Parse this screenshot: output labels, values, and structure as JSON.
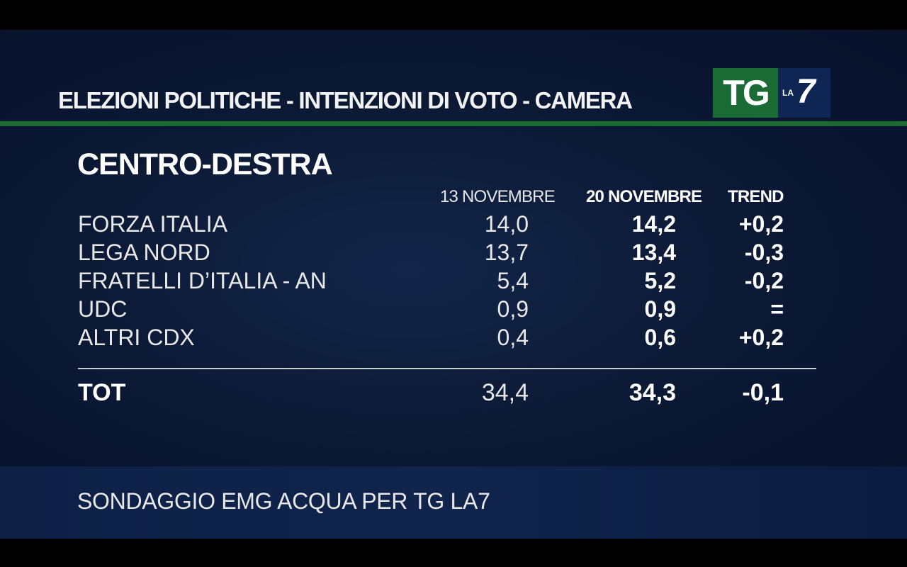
{
  "header": {
    "title": "ELEZIONI POLITICHE - INTENZIONI DI VOTO - CAMERA",
    "logo": {
      "tg": "TG",
      "la": "LA",
      "seven": "7"
    }
  },
  "section": {
    "title": "CENTRO-DESTRA"
  },
  "columns": {
    "col1": "13 NOVEMBRE",
    "col2": "20 NOVEMBRE",
    "col3": "TREND"
  },
  "rows": [
    {
      "party": "FORZA ITALIA",
      "nov13": "14,0",
      "nov20": "14,2",
      "trend": "+0,2"
    },
    {
      "party": "LEGA NORD",
      "nov13": "13,7",
      "nov20": "13,4",
      "trend": "-0,3"
    },
    {
      "party": "FRATELLI D’ITALIA - AN",
      "nov13": "5,4",
      "nov20": "5,2",
      "trend": "-0,2"
    },
    {
      "party": "UDC",
      "nov13": "0,9",
      "nov20": "0,9",
      "trend": "="
    },
    {
      "party": "ALTRI CDX",
      "nov13": "0,4",
      "nov20": "0,6",
      "trend": "+0,2"
    }
  ],
  "total": {
    "label": "TOT",
    "nov13": "34,4",
    "nov20": "34,3",
    "trend": "-0,1"
  },
  "footer": {
    "source": "SONDAGGIO EMG ACQUA PER TG LA7"
  },
  "colors": {
    "background": "#0c1a36",
    "accent_green": "#1c6b33",
    "logo_green": "#1a6b35",
    "logo_blue": "#0f2553"
  }
}
